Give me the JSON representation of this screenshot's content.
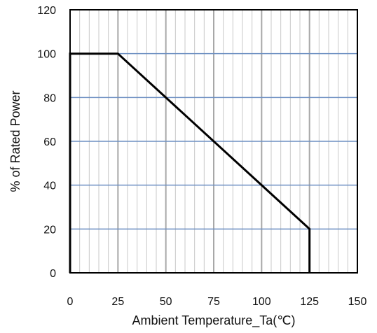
{
  "chart_data": {
    "type": "line",
    "xlabel": "Ambient  Temperature_Ta(℃)",
    "ylabel": "% of Rated Power",
    "xlim": [
      0,
      150
    ],
    "ylim": [
      0,
      120
    ],
    "x_ticks": [
      "0",
      "25",
      "50",
      "75",
      "100",
      "125",
      "150"
    ],
    "y_ticks": [
      "0",
      "20",
      "40",
      "60",
      "80",
      "100",
      "120"
    ],
    "series": [
      {
        "x": [
          0,
          0,
          25,
          125,
          125
        ],
        "y": [
          0,
          100,
          100,
          20,
          0
        ]
      }
    ],
    "grid": true,
    "minor_x_step": 5,
    "colors": {
      "minor_grid": "#c8c8c8",
      "major_v_grid": "#a8a8a8",
      "h_grid": "#6d8fc2",
      "series": "#000000",
      "frame": "#000000"
    }
  }
}
